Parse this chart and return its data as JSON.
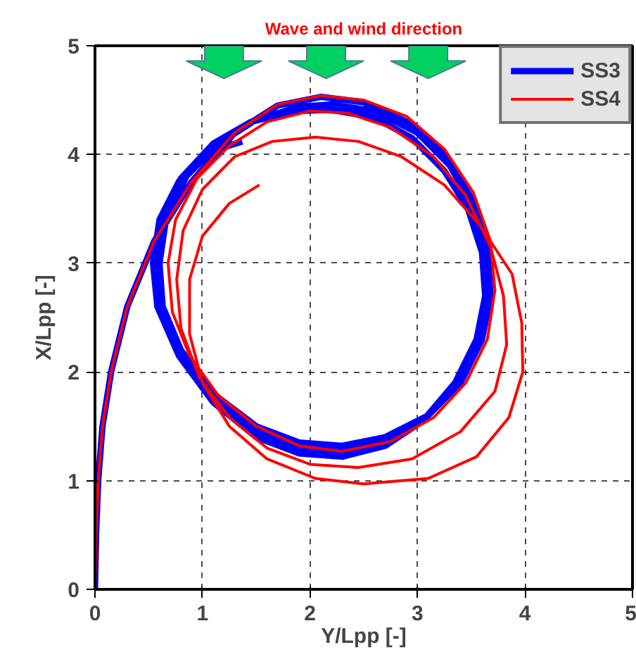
{
  "chart_data": {
    "type": "line",
    "xlabel": "Y/Lpp [-]",
    "ylabel": "X/Lpp [-]",
    "annotations": [
      "Wave and wind direction"
    ],
    "xlim": [
      0,
      5
    ],
    "ylim": [
      0,
      5
    ],
    "xticks": [
      0,
      1,
      2,
      3,
      4,
      5
    ],
    "yticks": [
      0,
      1,
      2,
      3,
      4,
      5
    ],
    "grid": true,
    "legend": "top right",
    "line_style": "solid",
    "marker": "none",
    "series": [
      {
        "name": "SS3",
        "color": "#0000ff",
        "x": [
          0,
          0.01,
          0.03,
          0.07,
          0.15,
          0.3,
          0.55,
          0.9,
          1.3,
          1.7,
          2.1,
          2.5,
          2.9,
          3.25,
          3.5,
          3.65,
          3.68,
          3.6,
          3.4,
          3.1,
          2.7,
          2.3,
          1.9,
          1.5,
          1.1,
          0.8,
          0.63,
          0.6,
          0.66,
          0.85,
          1.15,
          1.5,
          1.9,
          2.2,
          2.6,
          3.0,
          3.3,
          3.5,
          3.64,
          3.66,
          3.58,
          3.38,
          3.08,
          2.7,
          2.3,
          1.9,
          1.5,
          1.1,
          0.8,
          0.61,
          0.57,
          0.63,
          0.8,
          1.1,
          1.45,
          1.85,
          2.2,
          2.6,
          2.95,
          3.25,
          3.47,
          3.6,
          3.63,
          3.55,
          3.35,
          3.05,
          2.7,
          2.3,
          1.9,
          1.5,
          1.1,
          0.78,
          0.58,
          0.54,
          0.6,
          0.78,
          1.05,
          1.37
        ],
        "values": [
          0,
          0.5,
          1.0,
          1.5,
          2.0,
          2.6,
          3.2,
          3.75,
          4.2,
          4.45,
          4.53,
          4.48,
          4.3,
          4.0,
          3.6,
          3.15,
          2.7,
          2.3,
          1.9,
          1.6,
          1.4,
          1.32,
          1.35,
          1.5,
          1.8,
          2.2,
          2.6,
          3.0,
          3.4,
          3.8,
          4.1,
          4.32,
          4.44,
          4.46,
          4.4,
          4.2,
          3.9,
          3.55,
          3.1,
          2.7,
          2.3,
          1.9,
          1.58,
          1.36,
          1.27,
          1.3,
          1.45,
          1.76,
          2.18,
          2.6,
          3.0,
          3.42,
          3.78,
          4.1,
          4.3,
          4.4,
          4.41,
          4.34,
          4.15,
          3.85,
          3.5,
          3.1,
          2.7,
          2.3,
          1.9,
          1.55,
          1.32,
          1.22,
          1.25,
          1.4,
          1.72,
          2.15,
          2.6,
          3.0,
          3.4,
          3.75,
          4.02,
          4.12
        ]
      },
      {
        "name": "SS4",
        "color": "#ff0000",
        "x": [
          0,
          0.01,
          0.03,
          0.07,
          0.15,
          0.3,
          0.55,
          0.9,
          1.3,
          1.7,
          2.1,
          2.5,
          2.9,
          3.25,
          3.52,
          3.68,
          3.72,
          3.65,
          3.45,
          3.15,
          2.75,
          2.3,
          1.9,
          1.5,
          1.15,
          0.88,
          0.72,
          0.68,
          0.75,
          0.95,
          1.25,
          1.6,
          2.0,
          2.35,
          2.75,
          3.15,
          3.45,
          3.68,
          3.8,
          3.83,
          3.72,
          3.4,
          2.95,
          2.45,
          2.0,
          1.6,
          1.25,
          0.97,
          0.8,
          0.76,
          0.82,
          1.0,
          1.3,
          1.65,
          2.05,
          2.45,
          2.85,
          3.25,
          3.58,
          3.88,
          3.97,
          3.98,
          3.85,
          3.55,
          3.1,
          2.5,
          2.05,
          1.6,
          1.25,
          1.0,
          0.88,
          0.88,
          1.0,
          1.25,
          1.53
        ],
        "values": [
          0,
          0.5,
          1.0,
          1.5,
          2.0,
          2.6,
          3.2,
          3.75,
          4.2,
          4.46,
          4.54,
          4.5,
          4.35,
          4.05,
          3.65,
          3.2,
          2.75,
          2.3,
          1.9,
          1.58,
          1.36,
          1.27,
          1.32,
          1.5,
          1.78,
          2.15,
          2.55,
          3.0,
          3.4,
          3.78,
          4.08,
          4.3,
          4.4,
          4.38,
          4.25,
          3.98,
          3.62,
          3.15,
          2.7,
          2.25,
          1.82,
          1.45,
          1.2,
          1.12,
          1.15,
          1.3,
          1.58,
          1.95,
          2.4,
          2.85,
          3.3,
          3.68,
          3.98,
          4.12,
          4.16,
          4.12,
          3.98,
          3.72,
          3.35,
          2.9,
          2.45,
          2.0,
          1.58,
          1.22,
          1.02,
          0.97,
          1.02,
          1.2,
          1.5,
          1.9,
          2.35,
          2.85,
          3.25,
          3.55,
          3.72
        ]
      }
    ]
  }
}
